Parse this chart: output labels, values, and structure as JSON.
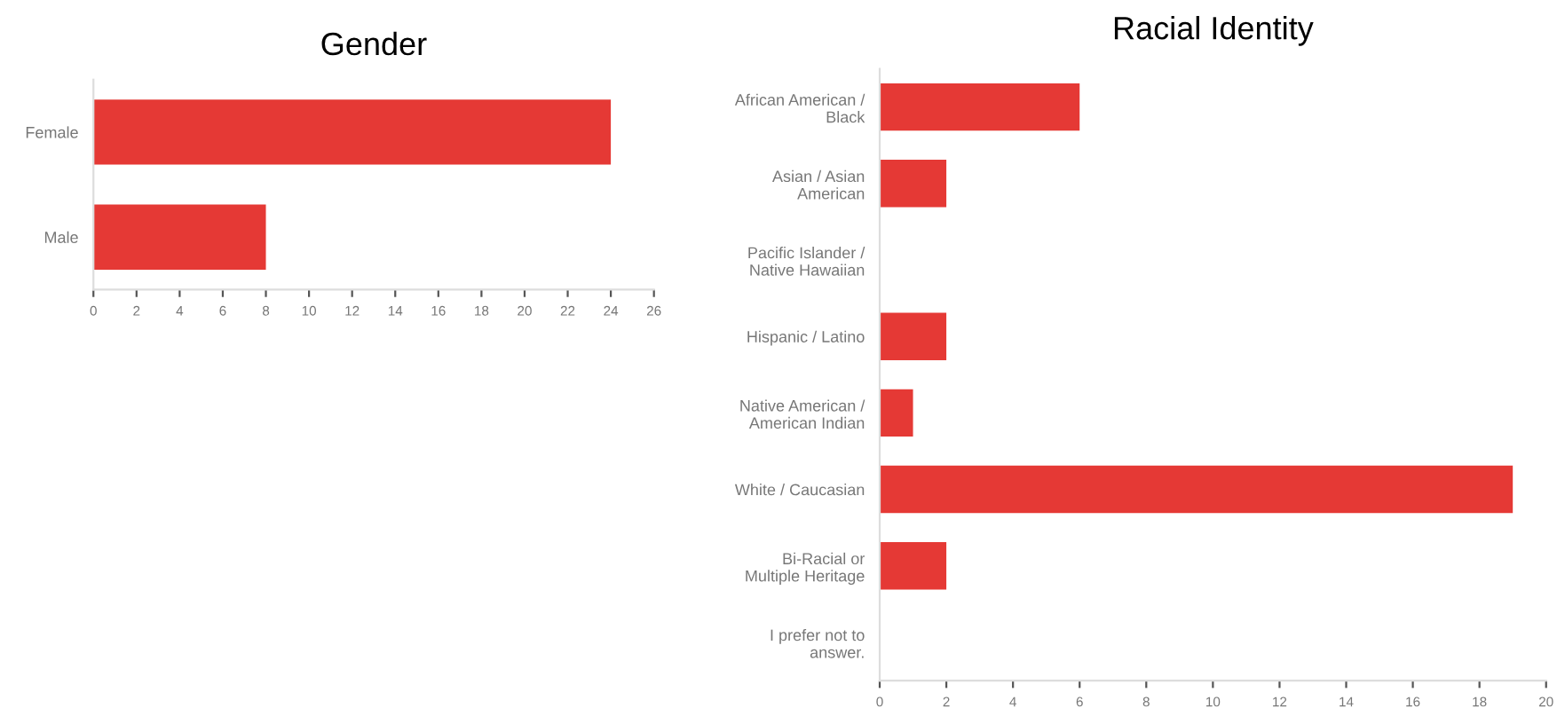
{
  "chart_data": [
    {
      "type": "bar",
      "orientation": "horizontal",
      "title": "Gender",
      "categories": [
        "Female",
        "Male"
      ],
      "values": [
        24,
        8
      ],
      "color": "#e53935",
      "xlim": [
        0,
        26
      ],
      "xticks": [
        0,
        2,
        4,
        6,
        8,
        10,
        12,
        14,
        16,
        18,
        20,
        22,
        24,
        26
      ],
      "grid": false
    },
    {
      "type": "bar",
      "orientation": "horizontal",
      "title": "Racial Identity",
      "categories": [
        "African American /\nBlack",
        "Asian / Asian\nAmerican",
        "Pacific Islander /\nNative Hawaiian",
        "Hispanic / Latino",
        "Native American /\nAmerican Indian",
        "White / Caucasian",
        "Bi-Racial or\nMultiple Heritage",
        "I prefer not to\nanswer."
      ],
      "values": [
        6,
        2,
        0,
        2,
        1,
        19,
        2,
        0
      ],
      "color": "#e53935",
      "xlim": [
        0,
        20
      ],
      "xticks": [
        0,
        2,
        4,
        6,
        8,
        10,
        12,
        14,
        16,
        18,
        20
      ],
      "grid": false
    }
  ]
}
